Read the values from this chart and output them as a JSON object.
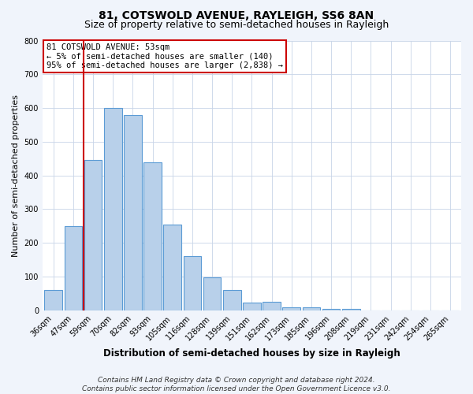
{
  "title": "81, COTSWOLD AVENUE, RAYLEIGH, SS6 8AN",
  "subtitle": "Size of property relative to semi-detached houses in Rayleigh",
  "xlabel": "Distribution of semi-detached houses by size in Rayleigh",
  "ylabel": "Number of semi-detached properties",
  "bar_labels": [
    "36sqm",
    "47sqm",
    "59sqm",
    "70sqm",
    "82sqm",
    "93sqm",
    "105sqm",
    "116sqm",
    "128sqm",
    "139sqm",
    "151sqm",
    "162sqm",
    "173sqm",
    "185sqm",
    "196sqm",
    "208sqm",
    "219sqm",
    "231sqm",
    "242sqm",
    "254sqm",
    "265sqm"
  ],
  "bar_values": [
    60,
    250,
    445,
    600,
    580,
    440,
    255,
    160,
    97,
    60,
    22,
    25,
    10,
    10,
    5,
    5,
    0,
    0,
    0,
    0,
    0
  ],
  "bar_color": "#b8d0ea",
  "bar_edge_color": "#5b9bd5",
  "plot_bg_color": "#ffffff",
  "fig_bg_color": "#f0f4fb",
  "ylim": [
    0,
    800
  ],
  "yticks": [
    0,
    100,
    200,
    300,
    400,
    500,
    600,
    700,
    800
  ],
  "vline_x": 1.5,
  "vline_color": "#cc0000",
  "annotation_title": "81 COTSWOLD AVENUE: 53sqm",
  "annotation_line1": "← 5% of semi-detached houses are smaller (140)",
  "annotation_line2": "95% of semi-detached houses are larger (2,838) →",
  "annotation_box_facecolor": "#ffffff",
  "annotation_box_edgecolor": "#cc0000",
  "footer1": "Contains HM Land Registry data © Crown copyright and database right 2024.",
  "footer2": "Contains public sector information licensed under the Open Government Licence v3.0.",
  "title_fontsize": 10,
  "subtitle_fontsize": 9,
  "xlabel_fontsize": 8.5,
  "ylabel_fontsize": 8,
  "tick_fontsize": 7,
  "annotation_fontsize": 7.5,
  "footer_fontsize": 6.5
}
